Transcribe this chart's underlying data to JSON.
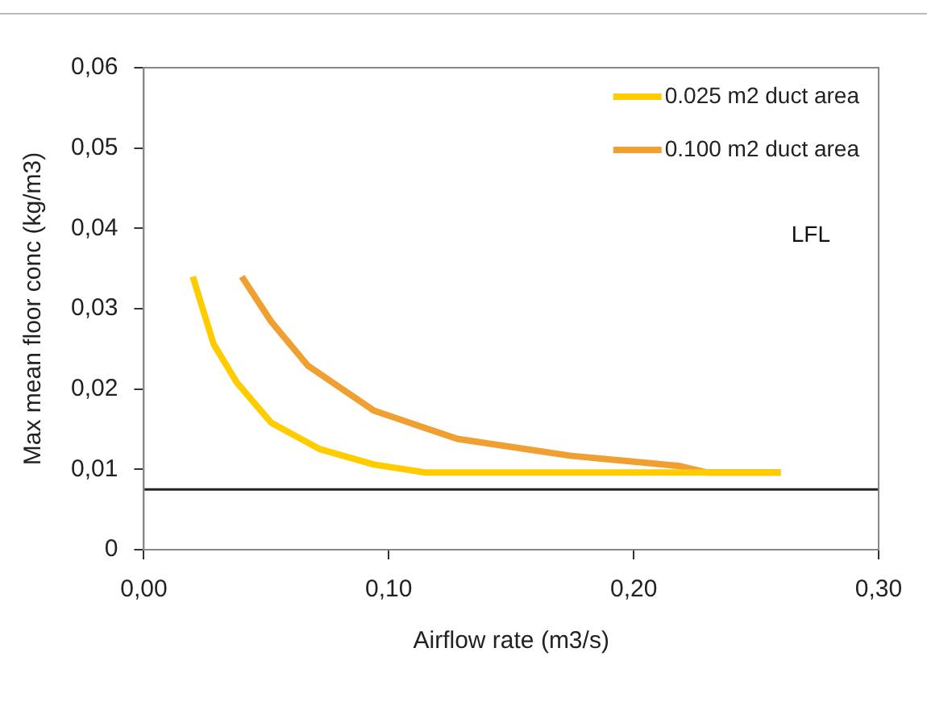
{
  "chart_data": {
    "type": "line",
    "xlabel": "Airflow rate (m3/s)",
    "ylabel": "Max mean floor conc (kg/m3)",
    "xlim": [
      0,
      0.3
    ],
    "xticks": [
      {
        "value": 0,
        "label": "0,00"
      },
      {
        "value": 0.1,
        "label": "0,10"
      },
      {
        "value": 0.2,
        "label": "0,20"
      },
      {
        "value": 0.3,
        "label": "0,30"
      }
    ],
    "ylim": [
      0,
      0.06
    ],
    "yticks": [
      {
        "value": 0,
        "label": "0"
      },
      {
        "value": 0.01,
        "label": "0,01"
      },
      {
        "value": 0.02,
        "label": "0,02"
      },
      {
        "value": 0.03,
        "label": "0,03"
      },
      {
        "value": 0.04,
        "label": "0,04"
      },
      {
        "value": 0.05,
        "label": "0,05"
      },
      {
        "value": 0.06,
        "label": "0,06"
      }
    ],
    "grid": false,
    "legend": "top right",
    "marker": "none",
    "line_style": "solid",
    "ref_lines": [
      {
        "axis": "y",
        "value": 0.0075,
        "color": "#222222"
      }
    ],
    "annotations": [
      "LFL"
    ],
    "series": [
      {
        "name": "0.025 m2 duct area",
        "color": "#ffcc00",
        "x": [
          0.02,
          0.0285,
          0.038,
          0.052,
          0.072,
          0.094,
          0.115,
          0.26
        ],
        "values": [
          0.034,
          0.0256,
          0.0208,
          0.0158,
          0.0125,
          0.0106,
          0.0096,
          0.0096
        ]
      },
      {
        "name": "0.100 m2 duct area",
        "color": "#f0a030",
        "x": [
          0.04,
          0.052,
          0.067,
          0.094,
          0.128,
          0.174,
          0.219,
          0.23,
          0.26
        ],
        "values": [
          0.034,
          0.0284,
          0.0229,
          0.0173,
          0.0138,
          0.0117,
          0.0104,
          0.0096,
          0.0096
        ]
      }
    ]
  }
}
